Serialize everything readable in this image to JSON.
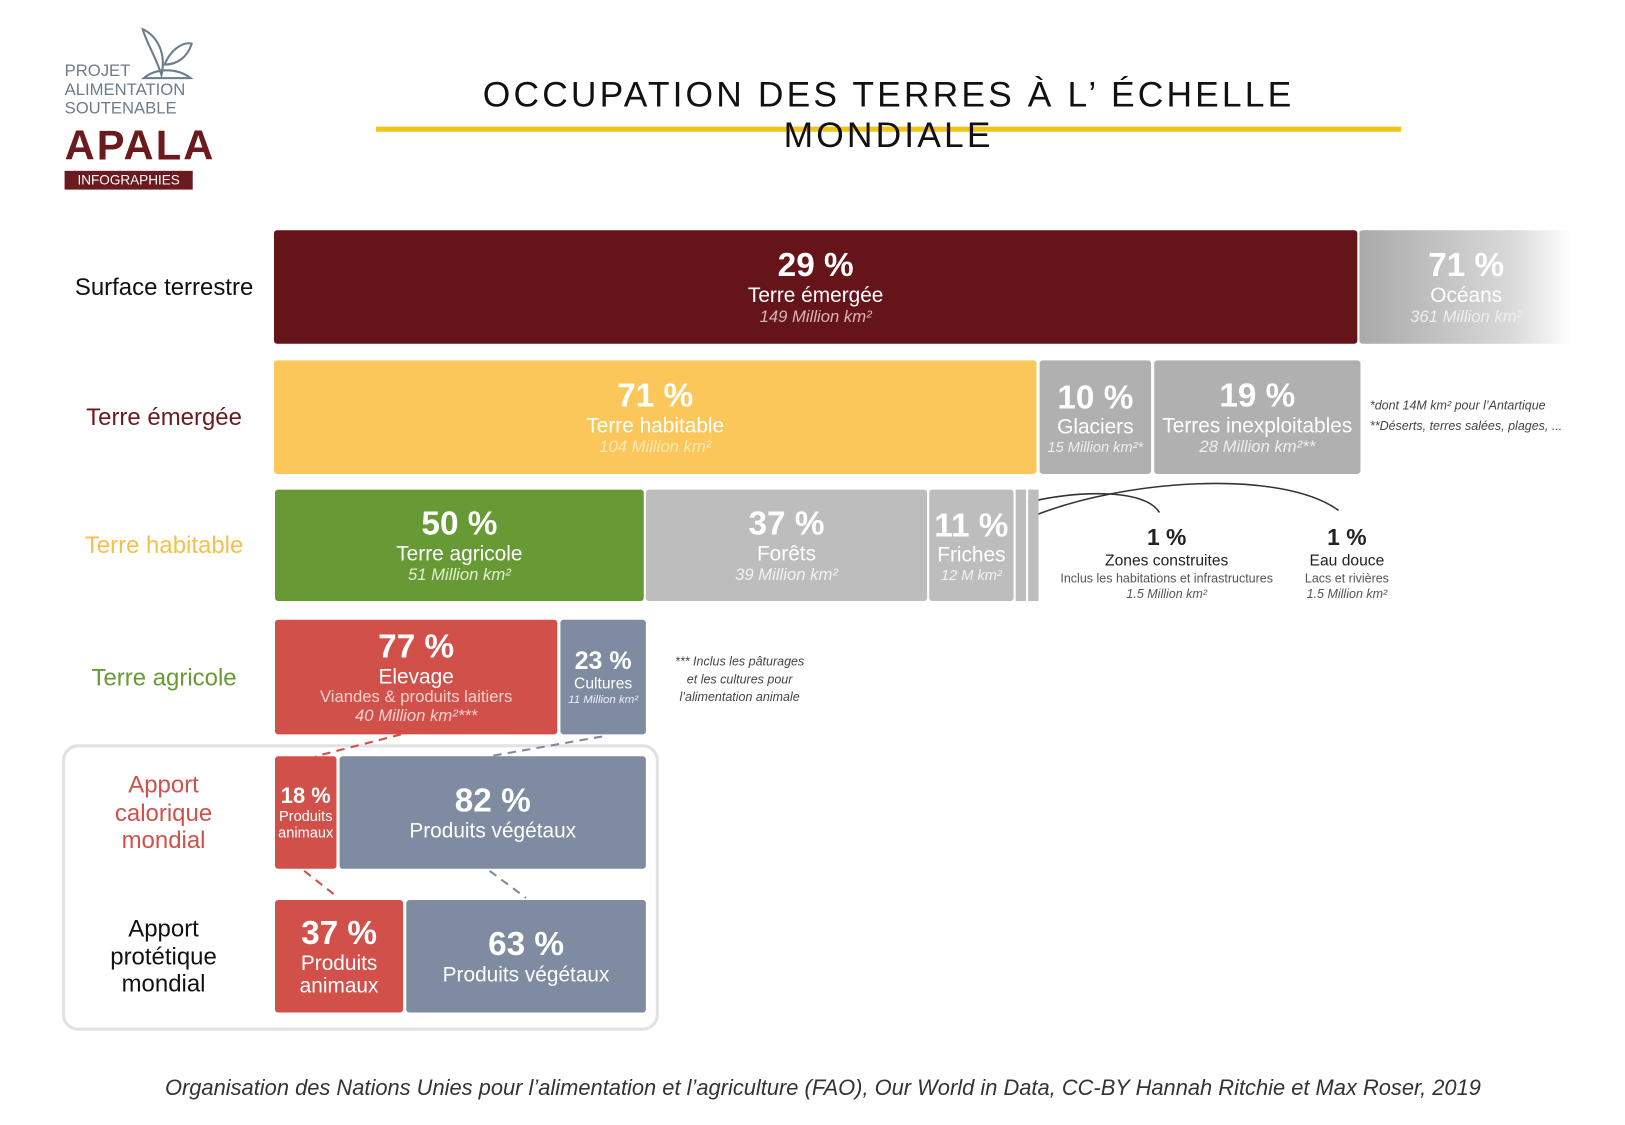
{
  "logo": {
    "lines": [
      "PROJET",
      "ALIMENTATION",
      "SOUTENABLE"
    ],
    "brand": "APALA",
    "tag": "INFOGRAPHIES"
  },
  "title": "OCCUPATION DES TERRES À L’ ÉCHELLE MONDIALE",
  "rows": [
    {
      "label": "Surface terrestre",
      "segments": [
        {
          "pct": "29 %",
          "name": "Terre émergée",
          "details": [
            "149 Million km²"
          ]
        },
        {
          "pct": "71 %",
          "name": "Océans",
          "details": [
            "361 Million km²"
          ]
        }
      ]
    },
    {
      "label": "Terre émergée",
      "segments": [
        {
          "pct": "71 %",
          "name": "Terre habitable",
          "details": [
            "104 Million km²"
          ]
        },
        {
          "pct": "10 %",
          "name": "Glaciers",
          "details": [
            "15 Million km²*"
          ]
        },
        {
          "pct": "19 %",
          "name": "Terres inexploitables",
          "details": [
            "28 Million km²**"
          ]
        }
      ],
      "notes": [
        "*dont 14M km² pour l’Antartique",
        "**Déserts, terres salées, plages, ..."
      ]
    },
    {
      "label": "Terre habitable",
      "segments": [
        {
          "pct": "50 %",
          "name": "Terre agricole",
          "details": [
            "51 Million km²"
          ]
        },
        {
          "pct": "37 %",
          "name": "Forêts",
          "details": [
            "39 Million km²"
          ]
        },
        {
          "pct": "11 %",
          "name": "Friches",
          "details": [
            "12 M km²"
          ]
        }
      ],
      "callouts": [
        {
          "pct": "1 %",
          "name": "Zones construites",
          "lines": [
            "Inclus les habitations et infrastructures",
            "1.5 Million km²"
          ]
        },
        {
          "pct": "1 %",
          "name": "Eau douce",
          "lines": [
            "Lacs et rivières",
            "1.5 Million km²"
          ]
        }
      ]
    },
    {
      "label": "Terre agricole",
      "segments": [
        {
          "pct": "77 %",
          "name": "Elevage",
          "details": [
            "Viandes & produits laitiers",
            "40 Million km²***"
          ]
        },
        {
          "pct": "23 %",
          "name": "Cultures",
          "details": [
            "11 Million km²"
          ]
        }
      ],
      "notes": [
        "*** Inclus les pâturages",
        "et les cultures pour",
        "l’alimentation animale"
      ]
    },
    {
      "label": "Apport calorique mondial",
      "segments": [
        {
          "pct": "18 %",
          "name": "Produits animaux",
          "details": []
        },
        {
          "pct": "82 %",
          "name": "Produits végétaux",
          "details": []
        }
      ]
    },
    {
      "label": "Apport protétique mondial",
      "segments": [
        {
          "pct": "37 %",
          "name": "Produits animaux",
          "details": []
        },
        {
          "pct": "63 %",
          "name": "Produits végétaux",
          "details": []
        }
      ]
    }
  ],
  "source": "Organisation des Nations Unies pour l’alimentation et l’agriculture (FAO), Our World in Data, CC-BY Hannah Ritchie et Max Roser, 2019"
}
